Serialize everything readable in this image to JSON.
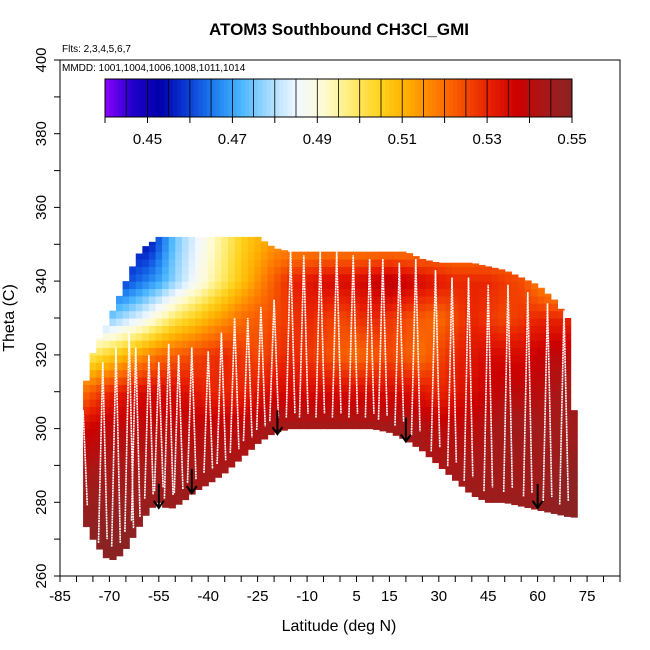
{
  "chart_data": {
    "type": "heatmap",
    "title": "ATOM3 Southbound CH3Cl_GMI",
    "subtitle_flights": "Flts: 2,3,4,5,6,7",
    "subtitle_dates": "MMDD: 1001,1004,1006,1008,1011,1014",
    "xlabel": "Latitude (deg N)",
    "ylabel": "Theta (C)",
    "xlim": [
      -85,
      85
    ],
    "ylim": [
      260,
      400
    ],
    "x_tick_labels": [
      "-85",
      "-70",
      "-55",
      "-40",
      "-25",
      "-10",
      "5",
      "15",
      "30",
      "45",
      "60",
      "75"
    ],
    "x_tick_values": [
      -85,
      -70,
      -55,
      -40,
      -25,
      -10,
      5,
      15,
      30,
      45,
      60,
      75
    ],
    "y_tick_labels": [
      "260",
      "280",
      "300",
      "320",
      "340",
      "360",
      "380",
      "400"
    ],
    "y_tick_values": [
      260,
      280,
      300,
      320,
      340,
      360,
      380,
      400
    ],
    "colorbar": {
      "range": [
        0.44,
        0.55
      ],
      "tick_labels": [
        "0.45",
        "0.47",
        "0.49",
        "0.51",
        "0.53",
        "0.55"
      ],
      "tick_values": [
        0.45,
        0.47,
        0.49,
        0.51,
        0.53,
        0.55
      ],
      "colors": [
        "#8b00ff",
        "#2200cc",
        "#0000aa",
        "#0a3cd6",
        "#1e7ff0",
        "#4db8ff",
        "#a8dcff",
        "#f2f8ff",
        "#fffbd0",
        "#ffec70",
        "#ffd21e",
        "#ffae00",
        "#ff7e00",
        "#f55000",
        "#e82000",
        "#cc0000",
        "#a81818",
        "#8b2323"
      ]
    },
    "surface_boundary": {
      "lat": [
        -82,
        -75,
        -72,
        -70,
        -66,
        -62,
        -58,
        -55,
        -52,
        -48,
        -44,
        -40,
        -35,
        -30,
        -25,
        -20,
        -15,
        -10,
        -5,
        0,
        5,
        10,
        15,
        20,
        25,
        30,
        35,
        40,
        45,
        50,
        55,
        60,
        65,
        70
      ],
      "theta": [
        282,
        270,
        266,
        264,
        266,
        272,
        278,
        280,
        278,
        280,
        283,
        285,
        288,
        292,
        296,
        299,
        300,
        300,
        300,
        300,
        300,
        300,
        299,
        297,
        294,
        290,
        286,
        282,
        280,
        280,
        279,
        278,
        277,
        276
      ]
    },
    "top_boundary": {
      "lat": [
        -78,
        -76,
        -74,
        -72,
        -70,
        -68,
        -66,
        -64,
        -62,
        -60,
        -58,
        -55,
        -50,
        -45,
        -40,
        -35,
        -30,
        -25,
        -20,
        -15,
        -10,
        -5,
        0,
        5,
        10,
        15,
        20,
        25,
        30,
        35,
        40,
        45,
        50,
        55,
        60,
        65,
        69,
        71
      ],
      "theta": [
        308,
        318,
        323,
        326,
        330,
        334,
        338,
        342,
        346,
        349,
        350,
        352,
        352,
        352,
        352,
        352,
        352,
        352,
        349,
        348,
        348,
        348,
        348,
        348,
        348,
        348,
        348,
        346,
        345,
        345,
        345,
        344,
        343,
        341,
        339,
        335,
        330,
        305
      ]
    },
    "field_samples": [
      {
        "theta": 350,
        "lats": [
          -58,
          -50,
          -40,
          -30,
          -20
        ],
        "values": [
          0.455,
          0.475,
          0.49,
          0.505,
          0.515
        ]
      },
      {
        "theta": 340,
        "lats": [
          -65,
          -55,
          -45,
          -35,
          -25,
          -15,
          -5,
          5,
          15,
          25,
          35,
          45,
          55,
          65,
          70
        ],
        "values": [
          0.46,
          0.47,
          0.485,
          0.5,
          0.515,
          0.53,
          0.535,
          0.535,
          0.54,
          0.535,
          0.53,
          0.53,
          0.525,
          0.51,
          0.5
        ]
      },
      {
        "theta": 330,
        "lats": [
          -70,
          -60,
          -50,
          -40,
          -30,
          -20,
          -10,
          0,
          10,
          20,
          30,
          40,
          50,
          60,
          70
        ],
        "values": [
          0.475,
          0.485,
          0.5,
          0.51,
          0.52,
          0.525,
          0.53,
          0.525,
          0.53,
          0.525,
          0.52,
          0.53,
          0.525,
          0.53,
          0.53
        ]
      },
      {
        "theta": 320,
        "lats": [
          -75,
          -65,
          -55,
          -45,
          -35,
          -25,
          -15,
          -5,
          5,
          15,
          25,
          35,
          45,
          55,
          65,
          70
        ],
        "values": [
          0.5,
          0.51,
          0.52,
          0.525,
          0.53,
          0.525,
          0.53,
          0.525,
          0.52,
          0.525,
          0.52,
          0.53,
          0.535,
          0.535,
          0.54,
          0.54
        ]
      },
      {
        "theta": 310,
        "lats": [
          -78,
          -70,
          -60,
          -50,
          -40,
          -30,
          -20,
          -10,
          0,
          10,
          20,
          30,
          40,
          50,
          60,
          70
        ],
        "values": [
          0.52,
          0.53,
          0.535,
          0.535,
          0.53,
          0.53,
          0.535,
          0.535,
          0.535,
          0.535,
          0.535,
          0.53,
          0.535,
          0.54,
          0.54,
          0.545
        ]
      },
      {
        "theta": 300,
        "lats": [
          -80,
          -70,
          -60,
          -50,
          -40,
          -30,
          -20,
          -10,
          0,
          10,
          20,
          30,
          40,
          50,
          60,
          70
        ],
        "values": [
          0.535,
          0.54,
          0.54,
          0.54,
          0.54,
          0.54,
          0.545,
          0.545,
          0.545,
          0.545,
          0.545,
          0.54,
          0.54,
          0.545,
          0.545,
          0.545
        ]
      },
      {
        "theta": 285,
        "lats": [
          -80,
          -70,
          -60,
          -50,
          -40,
          -30,
          30,
          40,
          50,
          60,
          70
        ],
        "values": [
          0.545,
          0.545,
          0.545,
          0.545,
          0.545,
          0.545,
          0.545,
          0.545,
          0.545,
          0.545,
          0.55
        ]
      },
      {
        "theta": 270,
        "lats": [
          -75,
          -70,
          -65
        ],
        "values": [
          0.55,
          0.55,
          0.55
        ]
      }
    ],
    "arrows": [
      {
        "lat": -55,
        "theta": 285
      },
      {
        "lat": -45,
        "theta": 289
      },
      {
        "lat": -19,
        "theta": 305
      },
      {
        "lat": 20,
        "theta": 303
      },
      {
        "lat": 60,
        "theta": 285
      }
    ],
    "flight_profiles": [
      {
        "lat": -78,
        "top": 305
      },
      {
        "lat": -72,
        "top": 318
      },
      {
        "lat": -68,
        "top": 322
      },
      {
        "lat": -64,
        "top": 326
      },
      {
        "lat": -62,
        "top": 322
      },
      {
        "lat": -58,
        "top": 320
      },
      {
        "lat": -55,
        "top": 318
      },
      {
        "lat": -52,
        "top": 323
      },
      {
        "lat": -49,
        "top": 320
      },
      {
        "lat": -45,
        "top": 322
      },
      {
        "lat": -40,
        "top": 321
      },
      {
        "lat": -36,
        "top": 326
      },
      {
        "lat": -32,
        "top": 330
      },
      {
        "lat": -28,
        "top": 330
      },
      {
        "lat": -24,
        "top": 333
      },
      {
        "lat": -20,
        "top": 335
      },
      {
        "lat": -15,
        "top": 349
      },
      {
        "lat": -11,
        "top": 347
      },
      {
        "lat": -6,
        "top": 348
      },
      {
        "lat": -1,
        "top": 348
      },
      {
        "lat": 4,
        "top": 347
      },
      {
        "lat": 9,
        "top": 346
      },
      {
        "lat": 13,
        "top": 346
      },
      {
        "lat": 18,
        "top": 345
      },
      {
        "lat": 23,
        "top": 346
      },
      {
        "lat": 29,
        "top": 343
      },
      {
        "lat": 34,
        "top": 341
      },
      {
        "lat": 39,
        "top": 341
      },
      {
        "lat": 45,
        "top": 339
      },
      {
        "lat": 51,
        "top": 339
      },
      {
        "lat": 57,
        "top": 337
      },
      {
        "lat": 63,
        "top": 334
      },
      {
        "lat": 68,
        "top": 332
      }
    ]
  }
}
